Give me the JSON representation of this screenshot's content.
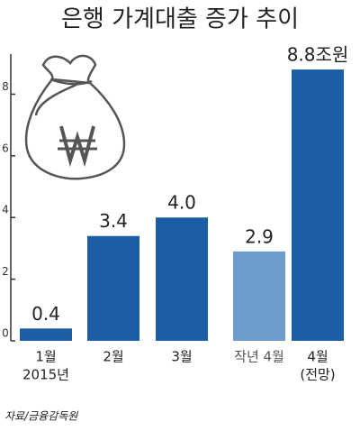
{
  "chart_data": {
    "type": "bar",
    "title": "은행 가계대출 증가 추이",
    "categories": [
      [
        "1월",
        "2015년"
      ],
      [
        "2월"
      ],
      [
        "3월"
      ],
      [
        "작년 4월"
      ],
      [
        "4월",
        "(전망)"
      ]
    ],
    "values": [
      0.4,
      3.4,
      4.0,
      2.9,
      8.8
    ],
    "value_labels": [
      "0.4",
      "3.4",
      "4.0",
      "2.9",
      "8.8조원"
    ],
    "colors": [
      "#1b5ea6",
      "#1b5ea6",
      "#1b5ea6",
      "#6e9ccd",
      "#1b5ea6"
    ],
    "ylim": [
      0,
      9.3
    ],
    "yticks": [
      0,
      2,
      4,
      6,
      8
    ],
    "source": "자료/금융감독원"
  }
}
